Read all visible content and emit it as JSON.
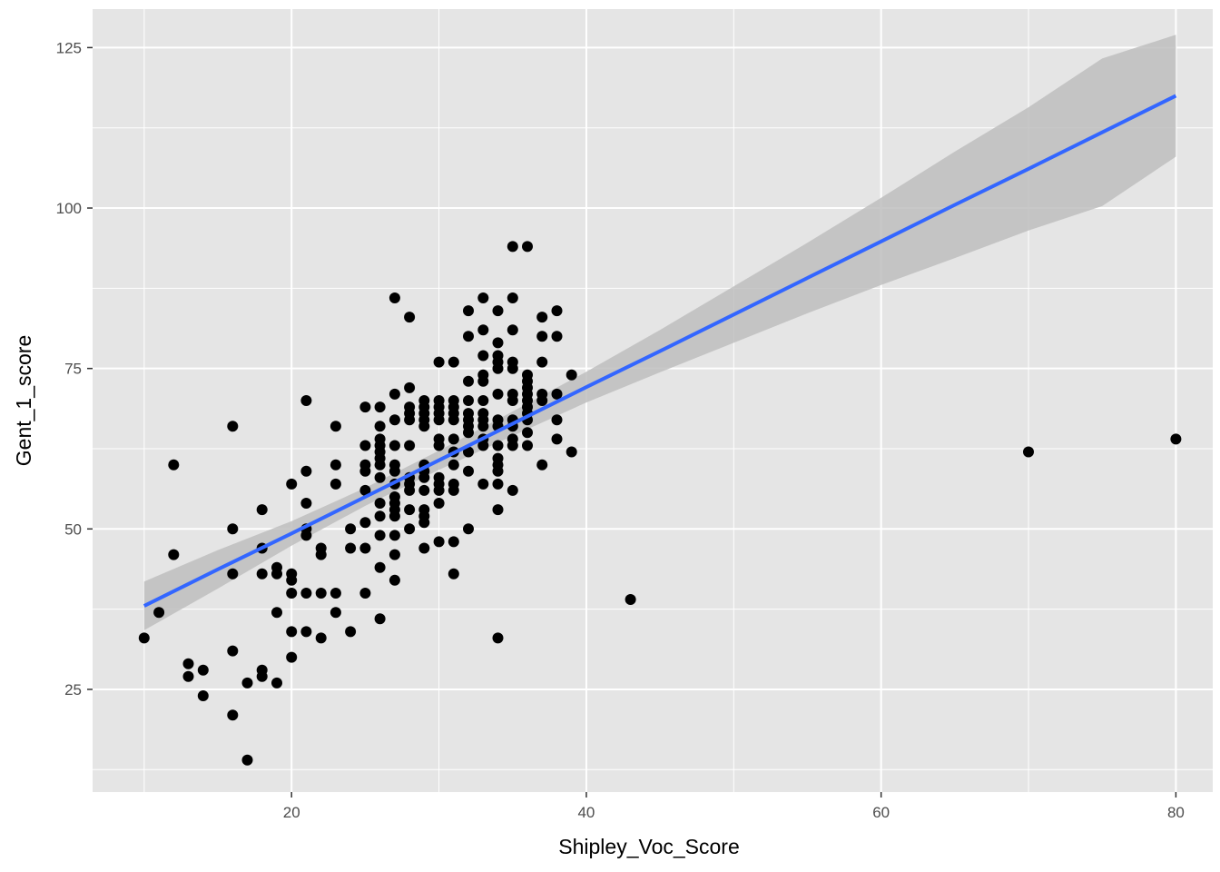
{
  "chart_data": {
    "type": "scatter",
    "xlabel": "Shipley_Voc_Score",
    "ylabel": "Gent_1_score",
    "xlim": [
      6.5,
      82.5
    ],
    "ylim": [
      9,
      131
    ],
    "x_ticks": [
      20,
      40,
      60,
      80
    ],
    "y_ticks": [
      25,
      50,
      75,
      100,
      125
    ],
    "grid": true,
    "colors": {
      "panel": "#e5e5e5",
      "grid": "#ffffff",
      "points": "#000000",
      "fit_line": "#3366ff",
      "ribbon": "#bebebe"
    },
    "points": [
      [
        10,
        33
      ],
      [
        11,
        37
      ],
      [
        12,
        60
      ],
      [
        12,
        46
      ],
      [
        13,
        29
      ],
      [
        13,
        27
      ],
      [
        14,
        28
      ],
      [
        14,
        24
      ],
      [
        16,
        66
      ],
      [
        16,
        50
      ],
      [
        16,
        43
      ],
      [
        16,
        31
      ],
      [
        16,
        21
      ],
      [
        17,
        26
      ],
      [
        17,
        14
      ],
      [
        18,
        53
      ],
      [
        18,
        47
      ],
      [
        18,
        43
      ],
      [
        18,
        28
      ],
      [
        18,
        27
      ],
      [
        19,
        44
      ],
      [
        19,
        43
      ],
      [
        19,
        37
      ],
      [
        19,
        26
      ],
      [
        20,
        57
      ],
      [
        20,
        43
      ],
      [
        20,
        42
      ],
      [
        20,
        40
      ],
      [
        20,
        34
      ],
      [
        20,
        30
      ],
      [
        21,
        70
      ],
      [
        21,
        59
      ],
      [
        21,
        54
      ],
      [
        21,
        50
      ],
      [
        21,
        49
      ],
      [
        21,
        40
      ],
      [
        21,
        34
      ],
      [
        22,
        47
      ],
      [
        22,
        46
      ],
      [
        22,
        40
      ],
      [
        22,
        33
      ],
      [
        23,
        66
      ],
      [
        23,
        60
      ],
      [
        23,
        57
      ],
      [
        23,
        40
      ],
      [
        23,
        37
      ],
      [
        24,
        50
      ],
      [
        24,
        47
      ],
      [
        24,
        34
      ],
      [
        25,
        69
      ],
      [
        25,
        63
      ],
      [
        25,
        60
      ],
      [
        25,
        59
      ],
      [
        25,
        56
      ],
      [
        25,
        51
      ],
      [
        25,
        47
      ],
      [
        25,
        40
      ],
      [
        26,
        69
      ],
      [
        26,
        66
      ],
      [
        26,
        64
      ],
      [
        26,
        63
      ],
      [
        26,
        62
      ],
      [
        26,
        61
      ],
      [
        26,
        60
      ],
      [
        26,
        58
      ],
      [
        26,
        54
      ],
      [
        26,
        52
      ],
      [
        26,
        49
      ],
      [
        26,
        44
      ],
      [
        26,
        36
      ],
      [
        27,
        86
      ],
      [
        27,
        71
      ],
      [
        27,
        67
      ],
      [
        27,
        63
      ],
      [
        27,
        60
      ],
      [
        27,
        59
      ],
      [
        27,
        57
      ],
      [
        27,
        55
      ],
      [
        27,
        54
      ],
      [
        27,
        53
      ],
      [
        27,
        52
      ],
      [
        27,
        49
      ],
      [
        27,
        46
      ],
      [
        27,
        42
      ],
      [
        28,
        83
      ],
      [
        28,
        72
      ],
      [
        28,
        69
      ],
      [
        28,
        68
      ],
      [
        28,
        67
      ],
      [
        28,
        63
      ],
      [
        28,
        58
      ],
      [
        28,
        57
      ],
      [
        28,
        56
      ],
      [
        28,
        53
      ],
      [
        28,
        50
      ],
      [
        29,
        70
      ],
      [
        29,
        69
      ],
      [
        29,
        68
      ],
      [
        29,
        67
      ],
      [
        29,
        66
      ],
      [
        29,
        60
      ],
      [
        29,
        59
      ],
      [
        29,
        58
      ],
      [
        29,
        56
      ],
      [
        29,
        53
      ],
      [
        29,
        52
      ],
      [
        29,
        51
      ],
      [
        29,
        47
      ],
      [
        30,
        76
      ],
      [
        30,
        70
      ],
      [
        30,
        69
      ],
      [
        30,
        68
      ],
      [
        30,
        67
      ],
      [
        30,
        64
      ],
      [
        30,
        63
      ],
      [
        30,
        58
      ],
      [
        30,
        57
      ],
      [
        30,
        56
      ],
      [
        30,
        54
      ],
      [
        30,
        48
      ],
      [
        31,
        76
      ],
      [
        31,
        70
      ],
      [
        31,
        69
      ],
      [
        31,
        68
      ],
      [
        31,
        67
      ],
      [
        31,
        64
      ],
      [
        31,
        62
      ],
      [
        31,
        60
      ],
      [
        31,
        57
      ],
      [
        31,
        56
      ],
      [
        31,
        48
      ],
      [
        31,
        43
      ],
      [
        32,
        84
      ],
      [
        32,
        80
      ],
      [
        32,
        73
      ],
      [
        32,
        70
      ],
      [
        32,
        68
      ],
      [
        32,
        67
      ],
      [
        32,
        66
      ],
      [
        32,
        65
      ],
      [
        32,
        62
      ],
      [
        32,
        59
      ],
      [
        32,
        50
      ],
      [
        33,
        86
      ],
      [
        33,
        81
      ],
      [
        33,
        77
      ],
      [
        33,
        74
      ],
      [
        33,
        73
      ],
      [
        33,
        70
      ],
      [
        33,
        68
      ],
      [
        33,
        67
      ],
      [
        33,
        66
      ],
      [
        33,
        64
      ],
      [
        33,
        63
      ],
      [
        33,
        57
      ],
      [
        34,
        84
      ],
      [
        34,
        79
      ],
      [
        34,
        77
      ],
      [
        34,
        76
      ],
      [
        34,
        75
      ],
      [
        34,
        71
      ],
      [
        34,
        67
      ],
      [
        34,
        66
      ],
      [
        34,
        63
      ],
      [
        34,
        61
      ],
      [
        34,
        60
      ],
      [
        34,
        59
      ],
      [
        34,
        57
      ],
      [
        34,
        53
      ],
      [
        34,
        33
      ],
      [
        35,
        94
      ],
      [
        35,
        86
      ],
      [
        35,
        81
      ],
      [
        35,
        76
      ],
      [
        35,
        75
      ],
      [
        35,
        71
      ],
      [
        35,
        70
      ],
      [
        35,
        67
      ],
      [
        35,
        66
      ],
      [
        35,
        64
      ],
      [
        35,
        63
      ],
      [
        35,
        56
      ],
      [
        36,
        94
      ],
      [
        36,
        74
      ],
      [
        36,
        73
      ],
      [
        36,
        72
      ],
      [
        36,
        71
      ],
      [
        36,
        70
      ],
      [
        36,
        69
      ],
      [
        36,
        68
      ],
      [
        36,
        67
      ],
      [
        36,
        65
      ],
      [
        36,
        63
      ],
      [
        37,
        83
      ],
      [
        37,
        80
      ],
      [
        37,
        76
      ],
      [
        37,
        71
      ],
      [
        37,
        70
      ],
      [
        37,
        60
      ],
      [
        38,
        84
      ],
      [
        38,
        80
      ],
      [
        38,
        71
      ],
      [
        38,
        67
      ],
      [
        38,
        64
      ],
      [
        39,
        74
      ],
      [
        39,
        62
      ],
      [
        43,
        39
      ],
      [
        70,
        62
      ],
      [
        80,
        64
      ]
    ],
    "fit": {
      "x": [
        10,
        15,
        20,
        25,
        30,
        35,
        40,
        45,
        50,
        55,
        60,
        65,
        70,
        75,
        80
      ],
      "y": [
        38.0,
        43.7,
        49.3,
        55.0,
        60.7,
        66.4,
        72.1,
        77.7,
        83.4,
        89.1,
        94.8,
        100.5,
        106.1,
        111.8,
        117.5
      ],
      "lower": [
        34.2,
        40.7,
        47.4,
        53.6,
        59.2,
        64.5,
        69.7,
        74.4,
        79.0,
        83.6,
        88.0,
        92.2,
        96.5,
        100.3,
        108.0
      ],
      "upper": [
        41.8,
        46.7,
        51.2,
        56.4,
        62.2,
        68.3,
        74.5,
        81.0,
        87.8,
        94.6,
        101.6,
        108.8,
        115.7,
        123.3,
        127.0
      ]
    }
  }
}
